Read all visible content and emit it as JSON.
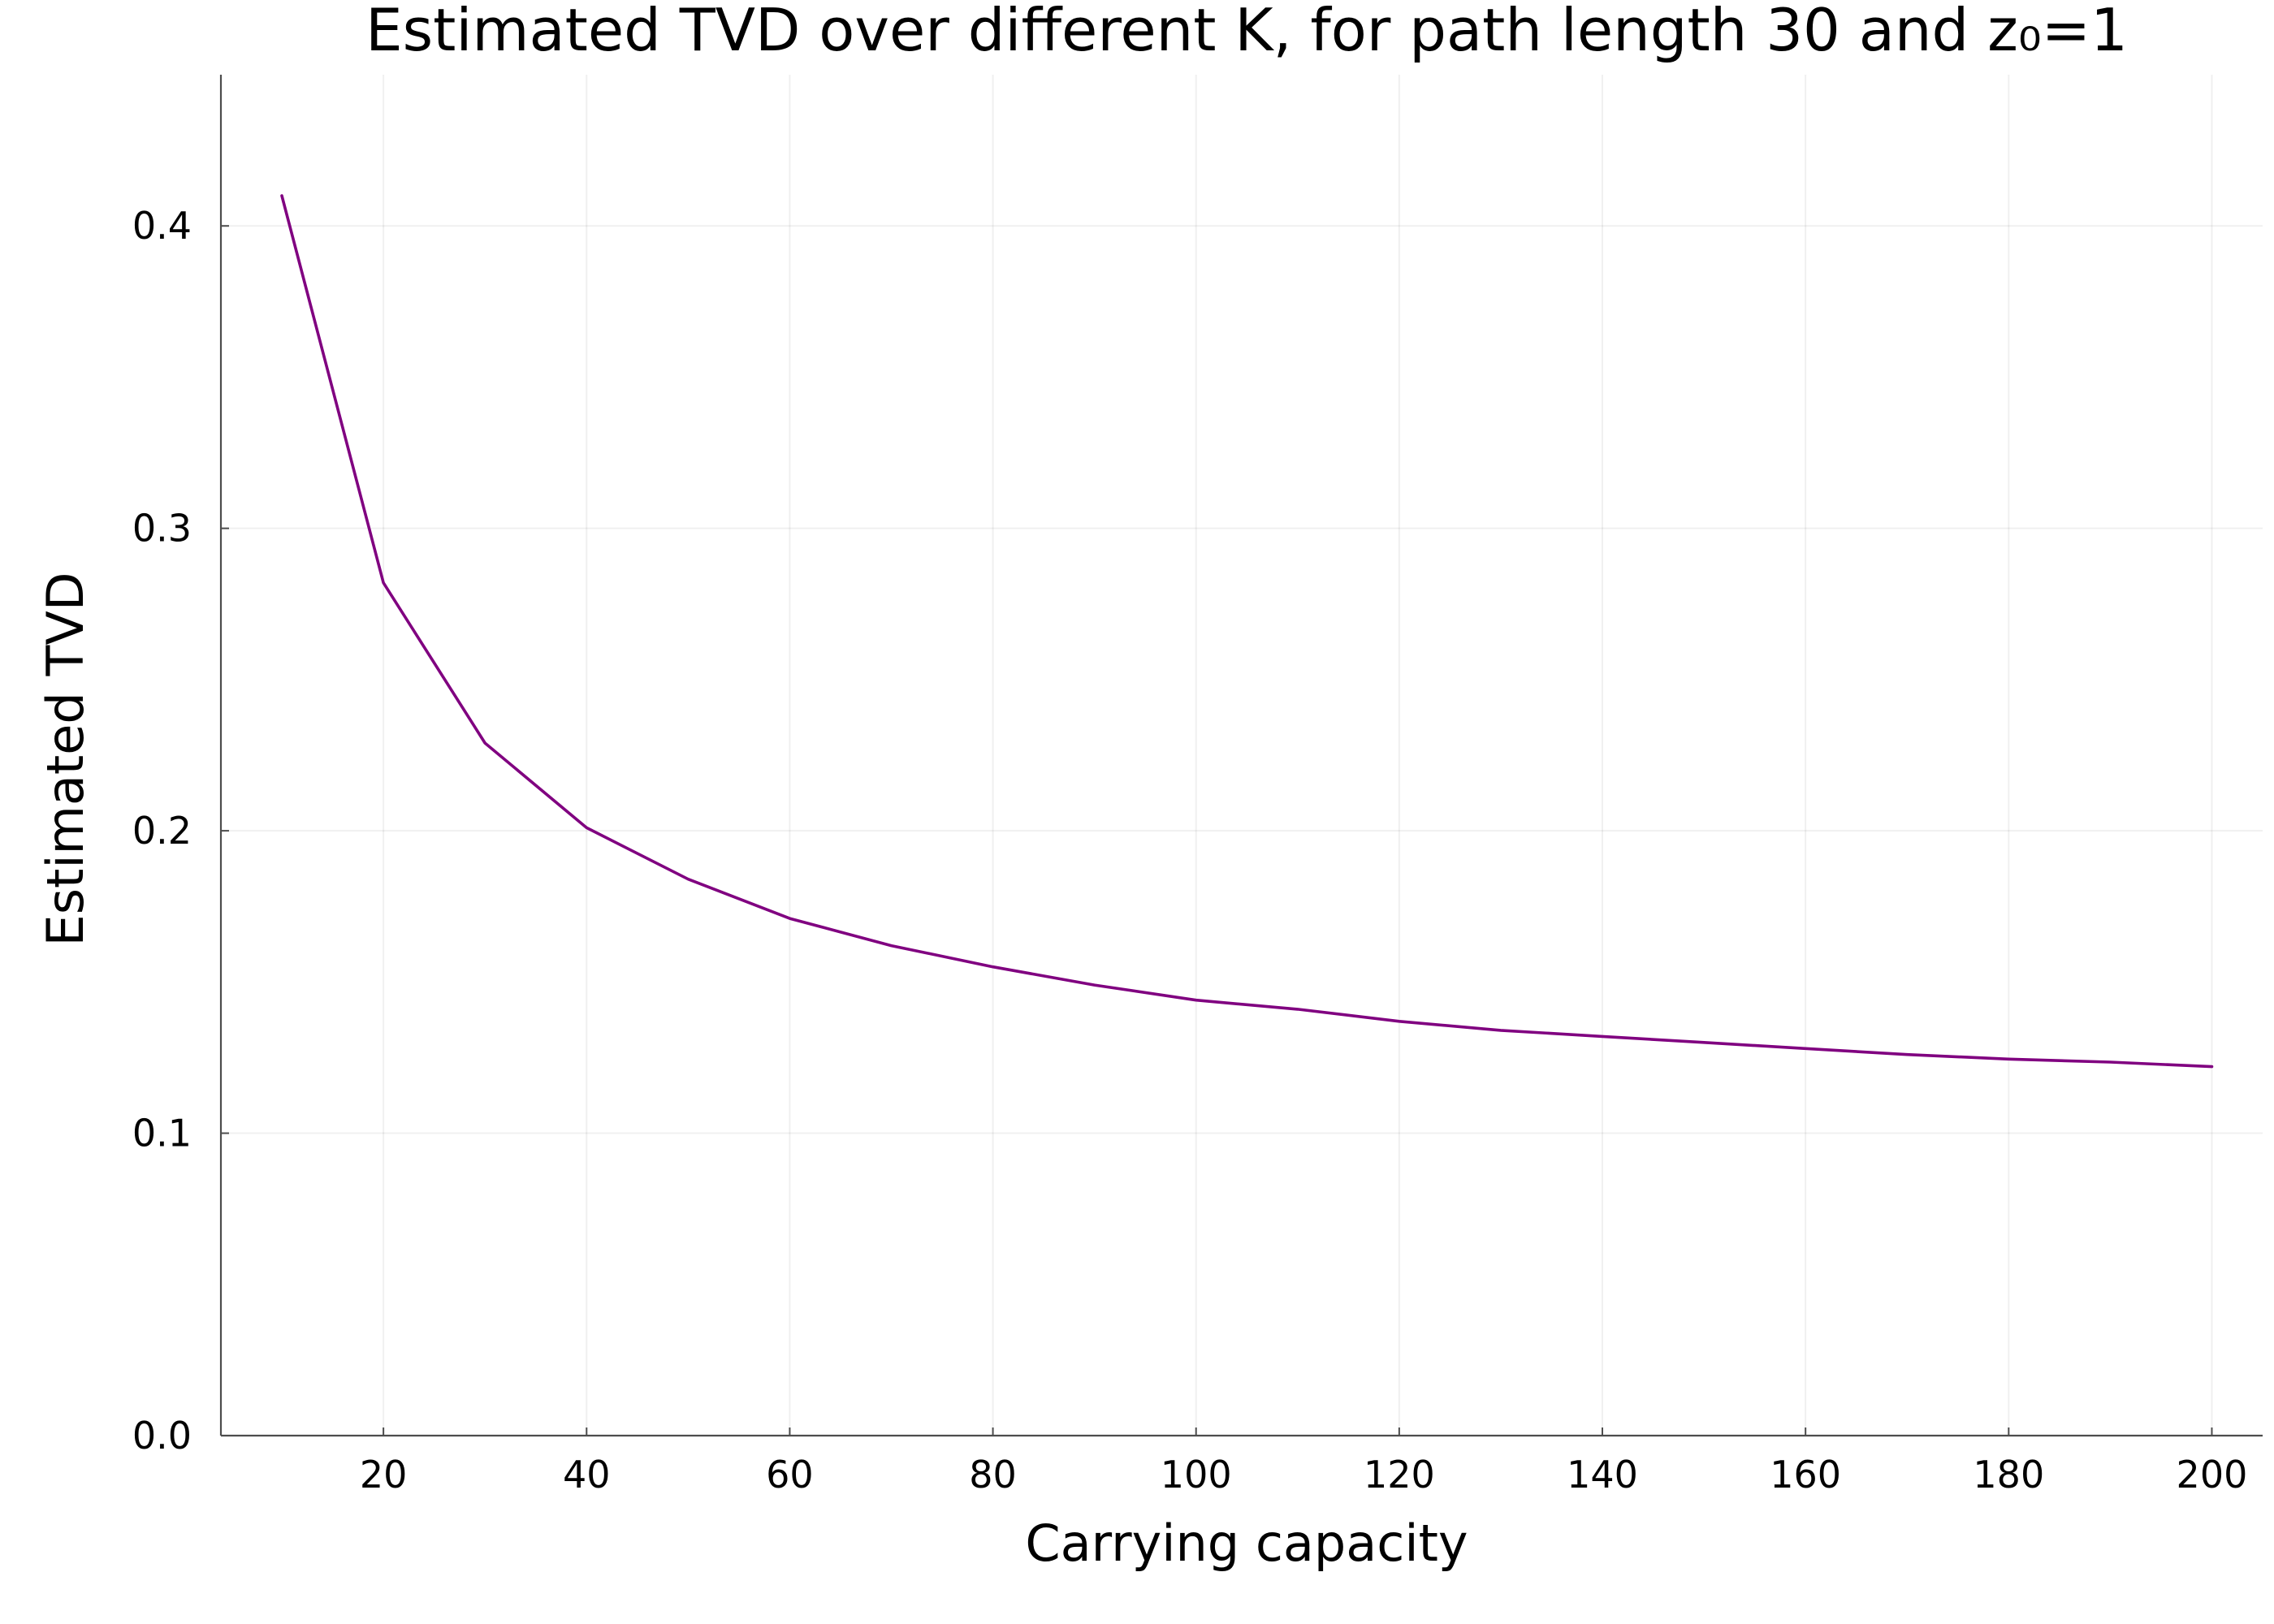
{
  "chart_data": {
    "type": "line",
    "title": "Estimated TVD over different K, for path length 30 and z₀=1",
    "xlabel": "Carrying capacity",
    "ylabel": "Estimated TVD",
    "xlim": [
      4,
      205
    ],
    "ylim": [
      0.0,
      0.45
    ],
    "xticks": [
      20,
      40,
      60,
      80,
      100,
      120,
      140,
      160,
      180,
      200
    ],
    "xtick_labels": [
      "20",
      "40",
      "60",
      "80",
      "100",
      "120",
      "140",
      "160",
      "180",
      "200"
    ],
    "yticks": [
      0.0,
      0.1,
      0.2,
      0.3,
      0.4
    ],
    "ytick_labels": [
      "0.0",
      "0.1",
      "0.2",
      "0.3",
      "0.4"
    ],
    "grid": true,
    "legend": "none",
    "series": [
      {
        "color": "#800080",
        "x": [
          10,
          20,
          30,
          40,
          50,
          60,
          70,
          80,
          90,
          100,
          110,
          120,
          130,
          140,
          150,
          160,
          170,
          180,
          190,
          200
        ],
        "y": [
          0.41,
          0.282,
          0.229,
          0.201,
          0.184,
          0.171,
          0.162,
          0.155,
          0.149,
          0.144,
          0.141,
          0.137,
          0.134,
          0.132,
          0.13,
          0.128,
          0.126,
          0.1245,
          0.1235,
          0.122
        ]
      }
    ]
  }
}
